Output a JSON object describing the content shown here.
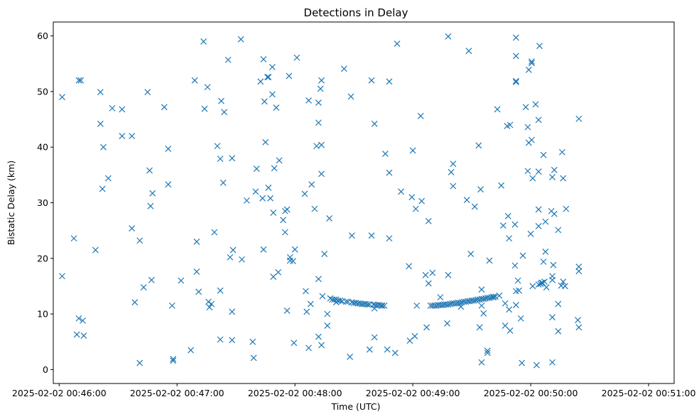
{
  "chart_data": {
    "type": "scatter",
    "title": "Detections in Delay",
    "xlabel": "Time (UTC)",
    "ylabel": "Bistatic Delay (km)",
    "x_unit": "seconds after 2025-02-02 00:46:00",
    "xlim": [
      -3,
      313
    ],
    "ylim": [
      -2.5,
      62.5
    ],
    "x_ticks": [
      {
        "value": 0,
        "label": "2025-02-02 00:46:00"
      },
      {
        "value": 60,
        "label": "2025-02-02 00:47:00"
      },
      {
        "value": 120,
        "label": "2025-02-02 00:48:00"
      },
      {
        "value": 180,
        "label": "2025-02-02 00:49:00"
      },
      {
        "value": 240,
        "label": "2025-02-02 00:50:00"
      },
      {
        "value": 300,
        "label": "2025-02-02 00:51:00"
      }
    ],
    "y_ticks": [
      {
        "value": 0,
        "label": "0"
      },
      {
        "value": 10,
        "label": "10"
      },
      {
        "value": 20,
        "label": "20"
      },
      {
        "value": 30,
        "label": "30"
      },
      {
        "value": 40,
        "label": "40"
      },
      {
        "value": 50,
        "label": "50"
      },
      {
        "value": 60,
        "label": "60"
      }
    ],
    "marker": "x",
    "color": "#1f77b4",
    "grid": false,
    "points": [
      [
        1.5,
        49
      ],
      [
        1.5,
        16.8
      ],
      [
        7.5,
        23.6
      ],
      [
        9,
        6.3
      ],
      [
        10,
        52
      ],
      [
        11,
        52
      ],
      [
        10,
        9.2
      ],
      [
        12,
        8.8
      ],
      [
        12.5,
        6.1
      ],
      [
        18.5,
        21.5
      ],
      [
        21,
        49.9
      ],
      [
        21,
        44.2
      ],
      [
        22,
        32.5
      ],
      [
        22.5,
        40
      ],
      [
        25,
        34.4
      ],
      [
        27,
        47
      ],
      [
        32,
        46.8
      ],
      [
        32,
        42
      ],
      [
        37,
        42
      ],
      [
        37,
        25.4
      ],
      [
        38.5,
        12.1
      ],
      [
        41,
        23.2
      ],
      [
        41,
        1.2
      ],
      [
        43,
        14.8
      ],
      [
        45,
        49.9
      ],
      [
        46,
        35.8
      ],
      [
        46.5,
        29.4
      ],
      [
        47.5,
        31.7
      ],
      [
        47,
        16.1
      ],
      [
        53.5,
        47.2
      ],
      [
        55.5,
        39.7
      ],
      [
        55.5,
        33.3
      ],
      [
        57.5,
        11.5
      ],
      [
        58,
        1.9
      ],
      [
        58,
        1.6
      ],
      [
        62,
        16
      ],
      [
        67,
        3.5
      ],
      [
        69,
        52
      ],
      [
        70,
        23
      ],
      [
        70,
        17.6
      ],
      [
        71,
        14
      ],
      [
        73.5,
        59
      ],
      [
        74,
        46.9
      ],
      [
        75.5,
        50.8
      ],
      [
        76,
        12.2
      ],
      [
        76.5,
        11.2
      ],
      [
        77.5,
        11.8
      ],
      [
        79,
        24.7
      ],
      [
        80.5,
        40.2
      ],
      [
        82,
        37.9
      ],
      [
        82,
        14.2
      ],
      [
        82.5,
        48.3
      ],
      [
        82,
        5.4
      ],
      [
        83.5,
        33.6
      ],
      [
        84,
        46.3
      ],
      [
        86,
        55.7
      ],
      [
        87,
        20.2
      ],
      [
        88,
        38
      ],
      [
        88,
        10.4
      ],
      [
        88.5,
        21.5
      ],
      [
        88,
        5.3
      ],
      [
        92.5,
        59.4
      ],
      [
        93,
        19.8
      ],
      [
        95.5,
        30.4
      ],
      [
        98.5,
        5
      ],
      [
        99,
        2.1
      ],
      [
        100.5,
        36.1
      ],
      [
        100,
        32
      ],
      [
        102.5,
        51.8
      ],
      [
        103.5,
        30.8
      ],
      [
        104,
        55.8
      ],
      [
        104.5,
        48.2
      ],
      [
        104,
        21.6
      ],
      [
        105,
        40.9
      ],
      [
        106,
        52.6
      ],
      [
        106.5,
        52.6
      ],
      [
        106.5,
        32.7
      ],
      [
        107.5,
        30.8
      ],
      [
        108.5,
        54.4
      ],
      [
        108.5,
        49.5
      ],
      [
        109,
        28.2
      ],
      [
        109,
        16.7
      ],
      [
        109.5,
        36.2
      ],
      [
        110.5,
        47.1
      ],
      [
        111.5,
        17.5
      ],
      [
        112,
        37.6
      ],
      [
        114,
        26.9
      ],
      [
        115,
        28.5
      ],
      [
        115,
        24.7
      ],
      [
        116,
        28.8
      ],
      [
        116,
        10.6
      ],
      [
        117,
        52.8
      ],
      [
        117.5,
        20.2
      ],
      [
        117.5,
        19.6
      ],
      [
        119,
        19.5
      ],
      [
        119.5,
        4.8
      ],
      [
        120,
        21.6
      ],
      [
        121,
        56.1
      ],
      [
        125,
        31.6
      ],
      [
        125.5,
        14.1
      ],
      [
        126,
        10.4
      ],
      [
        127,
        48.4
      ],
      [
        127,
        3.9
      ],
      [
        128,
        11.8
      ],
      [
        128.5,
        33.3
      ],
      [
        130,
        28.9
      ],
      [
        131,
        40.2
      ],
      [
        132,
        44.4
      ],
      [
        132,
        48
      ],
      [
        132,
        16.3
      ],
      [
        132,
        5.9
      ],
      [
        133,
        50.5
      ],
      [
        133.5,
        35.2
      ],
      [
        133.5,
        40.4
      ],
      [
        133.5,
        52
      ],
      [
        133.5,
        4.4
      ],
      [
        134,
        13.2
      ],
      [
        135,
        20.8
      ],
      [
        136.5,
        10
      ],
      [
        136.5,
        7.9
      ],
      [
        137.5,
        27.2
      ],
      [
        138,
        12.8
      ],
      [
        139,
        12.6
      ],
      [
        140,
        12.6
      ],
      [
        141,
        12.6
      ],
      [
        141,
        12.1
      ],
      [
        142,
        12.4
      ],
      [
        143,
        12.4
      ],
      [
        144,
        12.3
      ],
      [
        145,
        54.1
      ],
      [
        146,
        12.2
      ],
      [
        147,
        12.2
      ],
      [
        148,
        2.3
      ],
      [
        148.5,
        49.1
      ],
      [
        149,
        24.1
      ],
      [
        149,
        12.1
      ],
      [
        150,
        12
      ],
      [
        151,
        12
      ],
      [
        152,
        11.9
      ],
      [
        153,
        11.9
      ],
      [
        154,
        11.8
      ],
      [
        155,
        11.8
      ],
      [
        156,
        11.8
      ],
      [
        157,
        11.7
      ],
      [
        158,
        11.7
      ],
      [
        158,
        3.6
      ],
      [
        159,
        52
      ],
      [
        159,
        24.1
      ],
      [
        160,
        11.7
      ],
      [
        160.5,
        44.2
      ],
      [
        160.5,
        11
      ],
      [
        160.5,
        5.8
      ],
      [
        161,
        11.6
      ],
      [
        162,
        11.6
      ],
      [
        163,
        11.6
      ],
      [
        164,
        11.5
      ],
      [
        164.5,
        11.5
      ],
      [
        165.5,
        11.5
      ],
      [
        166,
        38.8
      ],
      [
        167,
        3.6
      ],
      [
        168,
        35.4
      ],
      [
        168,
        51.8
      ],
      [
        168,
        23.6
      ],
      [
        171,
        3
      ],
      [
        172,
        58.6
      ],
      [
        174,
        32
      ],
      [
        178,
        18.6
      ],
      [
        178.5,
        5.2
      ],
      [
        179.5,
        31
      ],
      [
        180,
        39.4
      ],
      [
        181,
        6
      ],
      [
        181.5,
        28.9
      ],
      [
        182,
        11.5
      ],
      [
        184,
        45.6
      ],
      [
        184.5,
        30.3
      ],
      [
        186.5,
        17
      ],
      [
        187,
        7.6
      ],
      [
        188,
        26.7
      ],
      [
        188,
        15.5
      ],
      [
        189,
        11.5
      ],
      [
        190,
        17.4
      ],
      [
        190,
        11.5
      ],
      [
        191,
        11.5
      ],
      [
        192,
        11.5
      ],
      [
        193,
        11.6
      ],
      [
        194,
        13
      ],
      [
        194,
        11.6
      ],
      [
        195,
        11.6
      ],
      [
        196,
        11.7
      ],
      [
        197,
        11.7
      ],
      [
        197.5,
        8.3
      ],
      [
        198,
        17
      ],
      [
        198,
        59.9
      ],
      [
        198,
        11.7
      ],
      [
        199,
        11.8
      ],
      [
        199.5,
        35.5
      ],
      [
        200,
        11.9
      ],
      [
        200.5,
        33
      ],
      [
        200.5,
        37
      ],
      [
        201,
        11.9
      ],
      [
        202,
        11.9
      ],
      [
        203,
        12
      ],
      [
        204,
        12
      ],
      [
        204.5,
        11.3
      ],
      [
        205,
        12.1
      ],
      [
        206,
        12.2
      ],
      [
        207,
        12.2
      ],
      [
        207.5,
        30.5
      ],
      [
        208,
        12.3
      ],
      [
        208.5,
        57.3
      ],
      [
        209,
        12.3
      ],
      [
        209.5,
        20.8
      ],
      [
        210,
        12.4
      ],
      [
        211,
        12.4
      ],
      [
        211.5,
        29.3
      ],
      [
        212,
        12.5
      ],
      [
        213,
        12.6
      ],
      [
        213.5,
        40.3
      ],
      [
        214,
        12.6
      ],
      [
        214.5,
        32.4
      ],
      [
        214,
        7.6
      ],
      [
        215,
        12.7
      ],
      [
        215,
        14.4
      ],
      [
        215,
        11.5
      ],
      [
        215,
        1.3
      ],
      [
        216,
        12.7
      ],
      [
        216,
        10.1
      ],
      [
        217,
        12.8
      ],
      [
        218,
        12.9
      ],
      [
        218,
        3.4
      ],
      [
        218,
        3
      ],
      [
        219,
        12.9
      ],
      [
        219,
        19.6
      ],
      [
        220,
        13
      ],
      [
        221,
        13
      ],
      [
        221,
        13.1
      ],
      [
        222,
        13.1
      ],
      [
        223,
        46.8
      ],
      [
        224,
        13.3
      ],
      [
        225,
        33.1
      ],
      [
        226,
        25.9
      ],
      [
        227,
        11.9
      ],
      [
        227,
        7.9
      ],
      [
        228,
        43.8
      ],
      [
        228.5,
        27.6
      ],
      [
        229,
        10.8
      ],
      [
        229,
        23.6
      ],
      [
        229.5,
        44
      ],
      [
        229.5,
        7
      ],
      [
        232,
        26.1
      ],
      [
        232,
        18.7
      ],
      [
        232.5,
        11.6
      ],
      [
        232.5,
        14.1
      ],
      [
        232.5,
        51.7
      ],
      [
        232.5,
        51.9
      ],
      [
        232.5,
        56.4
      ],
      [
        232.5,
        59.7
      ],
      [
        233.5,
        16
      ],
      [
        234,
        14.2
      ],
      [
        235,
        9.2
      ],
      [
        235.5,
        1.2
      ],
      [
        236,
        20.5
      ],
      [
        237.5,
        47.2
      ],
      [
        238.5,
        43.6
      ],
      [
        238.5,
        35.7
      ],
      [
        239,
        53.9
      ],
      [
        239,
        40.8
      ],
      [
        240,
        24.4
      ],
      [
        240.5,
        41.3
      ],
      [
        240.5,
        55.1
      ],
      [
        240.5,
        55.4
      ],
      [
        241,
        34.4
      ],
      [
        241,
        15
      ],
      [
        242.5,
        47.7
      ],
      [
        243,
        0.8
      ],
      [
        244,
        44.9
      ],
      [
        244,
        35.6
      ],
      [
        244,
        28.8
      ],
      [
        244,
        25.8
      ],
      [
        244,
        15.3
      ],
      [
        244.5,
        58.2
      ],
      [
        245,
        15.4
      ],
      [
        245.5,
        15.6
      ],
      [
        246,
        15.6
      ],
      [
        246.5,
        19.4
      ],
      [
        246.5,
        38.6
      ],
      [
        247,
        15.8
      ],
      [
        247.5,
        26.6
      ],
      [
        247.5,
        21.2
      ],
      [
        248,
        14.8
      ],
      [
        250.5,
        28.5
      ],
      [
        251,
        34.6
      ],
      [
        251,
        16.1
      ],
      [
        251,
        16.8
      ],
      [
        251,
        9.4
      ],
      [
        251,
        1.3
      ],
      [
        251.5,
        18.8
      ],
      [
        252,
        28
      ],
      [
        252,
        35.9
      ],
      [
        254,
        11.8
      ],
      [
        254,
        6.9
      ],
      [
        254,
        25.1
      ],
      [
        255.5,
        15.1
      ],
      [
        256,
        39.1
      ],
      [
        256.5,
        34.4
      ],
      [
        256.5,
        15.8
      ],
      [
        257.5,
        15
      ],
      [
        258,
        28.9
      ],
      [
        264,
        8.9
      ],
      [
        264.5,
        45.1
      ],
      [
        264.5,
        18.5
      ],
      [
        264.5,
        17.7
      ],
      [
        264.5,
        7.6
      ]
    ]
  }
}
